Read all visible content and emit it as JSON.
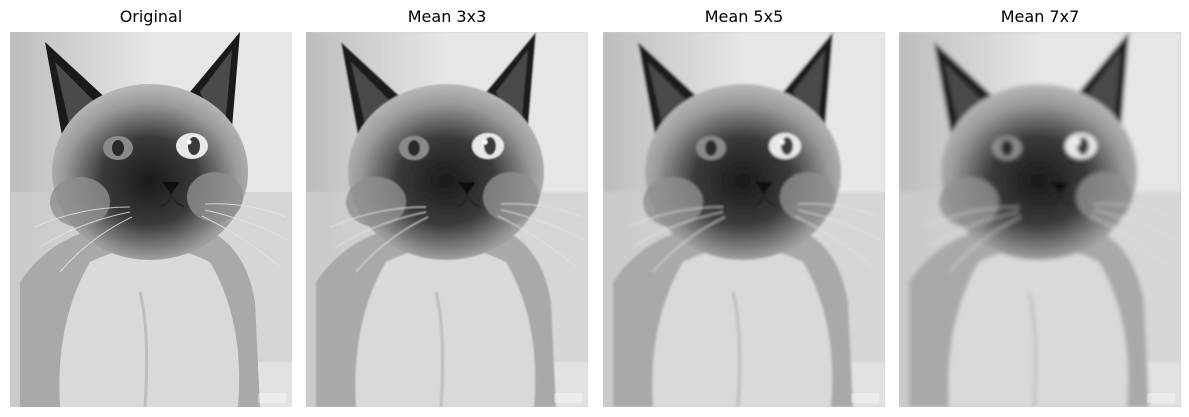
{
  "panels": [
    {
      "title": "Original",
      "blur_level": 0
    },
    {
      "title": "Mean 3x3",
      "blur_level": 0.8
    },
    {
      "title": "Mean 5x5",
      "blur_level": 1.4
    },
    {
      "title": "Mean 7x7",
      "blur_level": 2.0
    }
  ],
  "colors": {
    "background": "#ffffff",
    "wall_light": "#e6e6e6",
    "wall_dark": "#bdbdbd",
    "fur_light": "#d9d9d9",
    "fur_mid": "#9a9a9a",
    "fur_dark": "#1a1a1a",
    "eye": "#8a8a8a"
  },
  "icons": {
    "subject": "siamese-cat-photo-icon",
    "watermark": "watermark-icon"
  }
}
